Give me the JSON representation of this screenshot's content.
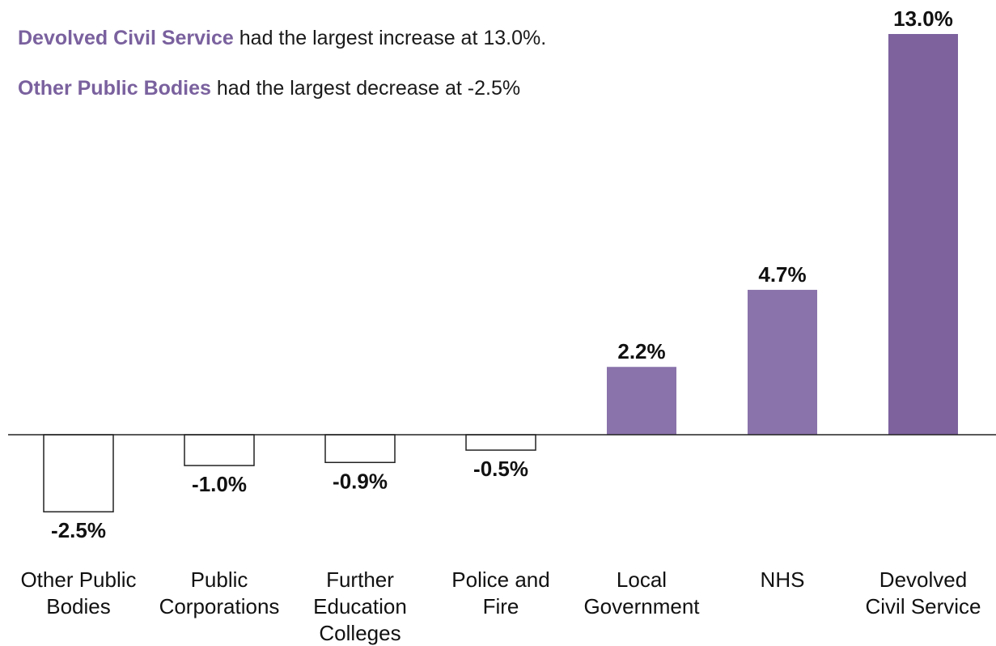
{
  "annotations": [
    {
      "highlight": "Devolved Civil Service",
      "text": " had the largest increase at 13.0%."
    },
    {
      "highlight": "Other Public Bodies",
      "text": " had the largest decrease at -2.5%"
    }
  ],
  "colors": {
    "positive_bar": "#8a73ab",
    "positive_bar_max": "#7d629e",
    "negative_bar_fill": "#ffffff",
    "negative_bar_stroke": "#222222",
    "highlight_text": "#7a619e"
  },
  "chart_data": {
    "type": "bar",
    "categories": [
      [
        "Other Public",
        "Bodies"
      ],
      [
        "Public",
        "Corporations"
      ],
      [
        "Further",
        "Education",
        "Colleges"
      ],
      [
        "Police and",
        "Fire"
      ],
      [
        "Local",
        "Government"
      ],
      [
        "NHS"
      ],
      [
        "Devolved",
        "Civil Service"
      ]
    ],
    "values": [
      -2.5,
      -1.0,
      -0.9,
      -0.5,
      2.2,
      4.7,
      13.0
    ],
    "labels": [
      "-2.5%",
      "-1.0%",
      "-0.9%",
      "-0.5%",
      "2.2%",
      "4.7%",
      "13.0%"
    ],
    "title": "",
    "xlabel": "",
    "ylabel": "",
    "ylim": [
      -2.5,
      13.0
    ],
    "grid": false,
    "legend": "none"
  }
}
